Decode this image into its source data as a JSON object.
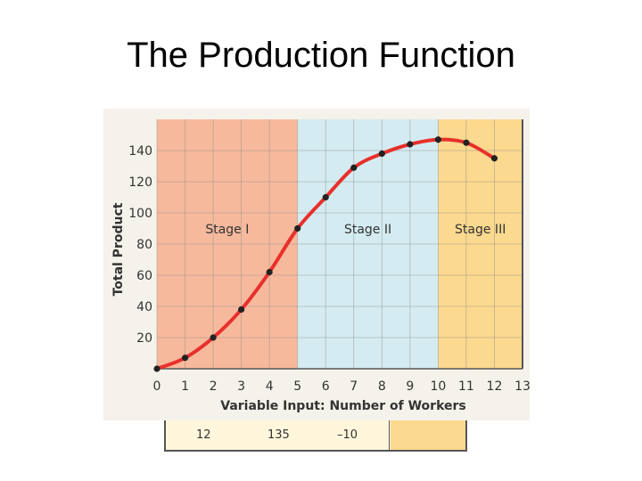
{
  "page": {
    "title": "The Production Function"
  },
  "table_row": {
    "workers": "12",
    "total_product": "135",
    "marginal_product": "–10"
  },
  "chart_data": {
    "type": "line",
    "title": "",
    "xlabel": "Variable Input: Number of Workers",
    "ylabel": "Total Product",
    "xlim": [
      0,
      13
    ],
    "ylim": [
      0,
      160
    ],
    "x_ticks": [
      0,
      1,
      2,
      3,
      4,
      5,
      6,
      7,
      8,
      9,
      10,
      11,
      12,
      13
    ],
    "y_ticks": [
      20,
      40,
      60,
      80,
      100,
      120,
      140
    ],
    "grid": true,
    "series": [
      {
        "name": "",
        "color": "#e8302c",
        "x": [
          0,
          1,
          2,
          3,
          4,
          5,
          6,
          7,
          8,
          9,
          10,
          11,
          12
        ],
        "y": [
          0,
          7,
          20,
          38,
          62,
          90,
          110,
          129,
          138,
          144,
          147,
          145,
          135
        ]
      }
    ],
    "regions": [
      {
        "label": "Stage I",
        "x_start": 0,
        "x_end": 5,
        "color": "#f7b99c"
      },
      {
        "label": "Stage II",
        "x_start": 5,
        "x_end": 10,
        "color": "#d4ecf1"
      },
      {
        "label": "Stage III",
        "x_start": 10,
        "x_end": 13,
        "color": "#fbd98f"
      }
    ]
  }
}
